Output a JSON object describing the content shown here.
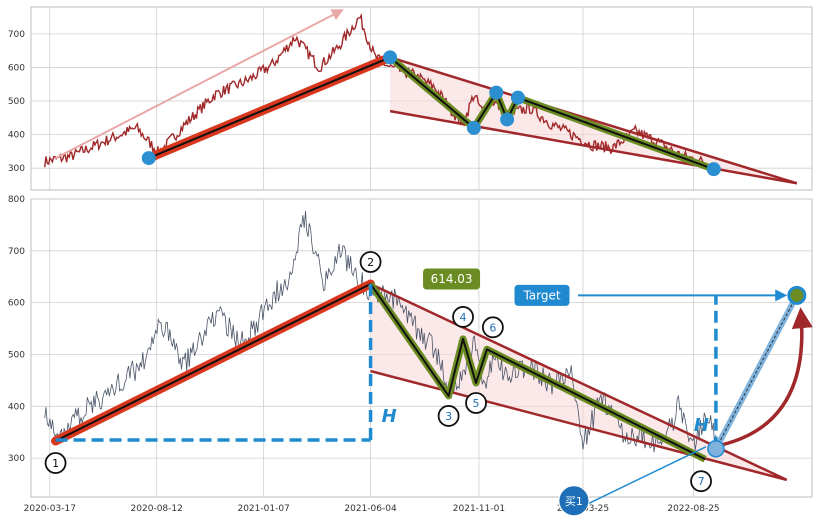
{
  "chart_data": [
    {
      "panel": "top",
      "type": "line",
      "xlabel": "",
      "ylabel": "",
      "x_range": [
        "2020-02-20",
        "2023-02-05"
      ],
      "ylim": [
        235,
        780
      ],
      "yticks": [
        300,
        400,
        500,
        600,
        700
      ],
      "grid": true,
      "colors": {
        "price": "#a0282a",
        "pattern": "#6b8c22",
        "pivot": "#2b8fd0",
        "boundary": "#a0282a"
      },
      "series": [
        {
          "x": [
            "2020-03-10",
            "2020-04-15",
            "2020-06-01",
            "2020-07-15",
            "2020-08-15",
            "2020-09-20",
            "2020-11-01",
            "2020-12-15",
            "2021-01-20",
            "2021-02-20",
            "2021-03-25",
            "2021-04-20",
            "2021-05-20",
            "2021-06-10",
            "2021-07-01",
            "2021-08-01",
            "2021-09-01",
            "2021-09-25",
            "2021-10-10",
            "2021-10-25",
            "2021-11-05",
            "2021-11-20",
            "2021-12-10",
            "2022-01-10",
            "2022-02-10",
            "2022-03-10",
            "2022-04-05",
            "2022-05-05",
            "2022-06-05",
            "2022-07-05",
            "2022-08-05",
            "2022-09-05",
            "2022-09-22"
          ],
          "values": [
            320,
            335,
            380,
            420,
            345,
            430,
            520,
            560,
            610,
            690,
            600,
            660,
            750,
            630,
            600,
            580,
            540,
            470,
            430,
            520,
            470,
            500,
            460,
            480,
            430,
            400,
            370,
            360,
            410,
            380,
            340,
            320,
            300
          ]
        }
      ],
      "pattern_points": [
        {
          "x": "2020-08-01",
          "y": 330
        },
        {
          "x": "2021-07-01",
          "y": 630
        },
        {
          "x": "2021-10-25",
          "y": 420
        },
        {
          "x": "2021-11-25",
          "y": 525
        },
        {
          "x": "2021-12-10",
          "y": 445
        },
        {
          "x": "2021-12-25",
          "y": 510
        },
        {
          "x": "2022-09-22",
          "y": 297
        }
      ],
      "upper_line": [
        {
          "x": "2021-07-01",
          "y": 630
        },
        {
          "x": "2023-01-15",
          "y": 255
        }
      ],
      "lower_line": [
        {
          "x": "2021-07-01",
          "y": 470
        },
        {
          "x": "2023-01-15",
          "y": 255
        }
      ],
      "arrow": [
        {
          "x": "2020-03-25",
          "y": 330
        },
        {
          "x": "2021-04-25",
          "y": 770
        }
      ]
    },
    {
      "panel": "bottom",
      "type": "line",
      "xlabel": "",
      "ylabel": "",
      "x_range": [
        "2020-02-20",
        "2023-02-05"
      ],
      "ylim": [
        225,
        800
      ],
      "yticks": [
        300,
        400,
        500,
        600,
        700,
        800
      ],
      "xticks": [
        "2020-03-17",
        "2020-08-12",
        "2021-01-07",
        "2021-06-04",
        "2021-11-01",
        "2022-03-25",
        "2022-08-25"
      ],
      "grid": true,
      "colors": {
        "price": "#4a5568",
        "pattern": "#6b8c22",
        "pivot_line": "#c0392b",
        "boundary": "#a0282a",
        "measure": "#1f8ad0",
        "label_box": "#6b8c22",
        "target_box": "#1f8ad0"
      },
      "series": [
        {
          "x": [
            "2020-03-10",
            "2020-03-25",
            "2020-05-01",
            "2020-06-10",
            "2020-07-20",
            "2020-08-20",
            "2020-09-20",
            "2020-11-01",
            "2020-12-10",
            "2021-01-15",
            "2021-02-10",
            "2021-03-05",
            "2021-04-01",
            "2021-04-25",
            "2021-05-20",
            "2021-06-10",
            "2021-07-05",
            "2021-08-01",
            "2021-09-01",
            "2021-09-20",
            "2021-10-10",
            "2021-10-25",
            "2021-11-10",
            "2021-11-25",
            "2021-12-10",
            "2022-01-10",
            "2022-02-10",
            "2022-03-10",
            "2022-03-25",
            "2022-04-20",
            "2022-05-20",
            "2022-06-20",
            "2022-07-10",
            "2022-08-05",
            "2022-08-25",
            "2022-09-15",
            "2022-09-25"
          ],
          "values": [
            400,
            335,
            390,
            430,
            480,
            560,
            480,
            580,
            520,
            600,
            650,
            770,
            640,
            700,
            640,
            620,
            610,
            560,
            510,
            430,
            460,
            520,
            440,
            510,
            450,
            480,
            440,
            470,
            330,
            420,
            350,
            340,
            320,
            400,
            330,
            380,
            330
          ]
        }
      ],
      "pattern_points": [
        {
          "label": "1",
          "x": "2020-03-25",
          "y": 333
        },
        {
          "label": "2",
          "x": "2021-06-04",
          "y": 636
        },
        {
          "label": "3",
          "x": "2021-09-20",
          "y": 420
        },
        {
          "label": "4",
          "x": "2021-10-10",
          "y": 530
        },
        {
          "label": "5",
          "x": "2021-10-28",
          "y": 445
        },
        {
          "label": "6",
          "x": "2021-11-12",
          "y": 510
        },
        {
          "label": "7",
          "x": "2022-09-10",
          "y": 298
        }
      ],
      "upper_line": [
        {
          "x": "2021-06-04",
          "y": 636
        },
        {
          "x": "2023-01-01",
          "y": 258
        }
      ],
      "lower_line": [
        {
          "x": "2021-06-04",
          "y": 468
        },
        {
          "x": "2023-01-01",
          "y": 258
        }
      ],
      "breakout": {
        "label": "买1",
        "x": "2022-09-25",
        "y": 318
      },
      "target": {
        "label": "Target",
        "x": "2023-01-15",
        "y": 614
      },
      "price_label": "614.03",
      "height_label": "H",
      "height_bottom": 335
    }
  ]
}
